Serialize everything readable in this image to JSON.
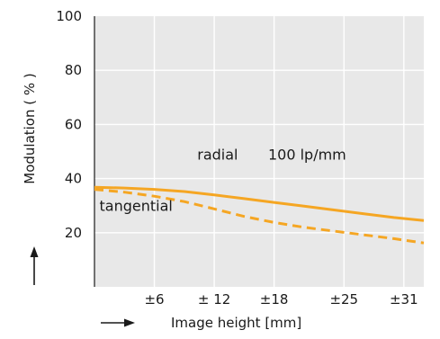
{
  "chart_data": {
    "type": "line",
    "title": "",
    "xlabel": "Image height [mm]",
    "ylabel": "Modulation ( % )",
    "x_axis_range": [
      0,
      33
    ],
    "y_axis_range": [
      0,
      100
    ],
    "x_tick_values": [
      6,
      12,
      18,
      25,
      31
    ],
    "x_tick_labels": [
      "±6",
      "± 12",
      "±18",
      "±25",
      "±31"
    ],
    "y_tick_values": [
      20,
      40,
      60,
      80,
      100
    ],
    "y_tick_labels": [
      "20",
      "40",
      "60",
      "80",
      "100"
    ],
    "grid": true,
    "colors": {
      "plot_background": "#e8e8e8",
      "grid": "#ffffff",
      "series": "#f5a623",
      "text": "#1a1a1a"
    },
    "annotations": [
      {
        "text": "radial",
        "x": 10.3,
        "y": 47
      },
      {
        "text": "100 lp/mm",
        "x": 17.4,
        "y": 47
      },
      {
        "text": "tangential",
        "x": 0.5,
        "y": 28
      }
    ],
    "series": [
      {
        "label": "radial",
        "style": "solid",
        "x": [
          0,
          3,
          6,
          9,
          12,
          15,
          18,
          21,
          24,
          27,
          30,
          33
        ],
        "y": [
          36.8,
          36.5,
          36.0,
          35.2,
          34.0,
          32.6,
          31.2,
          29.8,
          28.4,
          27.0,
          25.6,
          24.5
        ]
      },
      {
        "label": "tangential",
        "style": "dashed",
        "x": [
          0,
          3,
          6,
          9,
          12,
          15,
          18,
          21,
          24,
          27,
          30,
          33
        ],
        "y": [
          36.0,
          35.0,
          33.5,
          31.5,
          28.8,
          26.0,
          23.8,
          22.0,
          20.6,
          19.2,
          17.8,
          16.2
        ]
      }
    ]
  }
}
